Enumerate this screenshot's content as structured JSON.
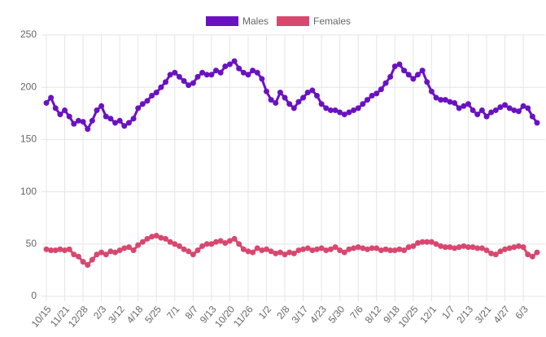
{
  "chart_data": {
    "type": "line",
    "categories": [
      "10/15",
      null,
      null,
      null,
      "11/21",
      null,
      null,
      null,
      "12/28",
      null,
      null,
      null,
      "2/3",
      null,
      null,
      null,
      "3/12",
      null,
      null,
      null,
      "4/18",
      null,
      null,
      null,
      "5/25",
      null,
      null,
      null,
      "7/1",
      null,
      null,
      null,
      "8/7",
      null,
      null,
      null,
      "9/13",
      null,
      null,
      null,
      "10/20",
      null,
      null,
      null,
      "11/26",
      null,
      null,
      null,
      "1/2",
      null,
      null,
      null,
      "2/8",
      null,
      null,
      null,
      "3/17",
      null,
      null,
      null,
      "4/23",
      null,
      null,
      null,
      "5/30",
      null,
      null,
      null,
      "7/6",
      null,
      null,
      null,
      "8/12",
      null,
      null,
      null,
      "9/18",
      null,
      null,
      null,
      "10/25",
      null,
      null,
      null,
      "12/1",
      null,
      null,
      null,
      "1/7",
      null,
      null,
      null,
      "2/13",
      null,
      null,
      null,
      "3/21",
      null,
      null,
      null,
      "4/27",
      null,
      null,
      null,
      "6/3",
      null,
      null,
      null
    ],
    "series": [
      {
        "name": "Males",
        "color": "#6a12c2",
        "values": [
          185,
          190,
          180,
          174,
          178,
          172,
          165,
          168,
          167,
          160,
          168,
          178,
          182,
          172,
          170,
          166,
          168,
          163,
          166,
          170,
          180,
          184,
          187,
          192,
          195,
          200,
          205,
          212,
          214,
          210,
          206,
          202,
          204,
          210,
          214,
          212,
          212,
          216,
          214,
          220,
          222,
          225,
          218,
          214,
          212,
          216,
          214,
          208,
          196,
          188,
          185,
          195,
          190,
          184,
          180,
          186,
          190,
          195,
          197,
          192,
          184,
          180,
          178,
          178,
          176,
          174,
          176,
          178,
          180,
          184,
          188,
          192,
          194,
          198,
          204,
          210,
          220,
          222,
          216,
          212,
          208,
          212,
          216,
          205,
          196,
          190,
          188,
          188,
          186,
          185,
          180,
          182,
          184,
          178,
          174,
          178,
          172,
          176,
          178,
          181,
          183,
          180,
          178,
          177,
          182,
          180,
          172,
          166
        ]
      },
      {
        "name": "Females",
        "color": "#d8476f",
        "values": [
          45,
          44,
          44,
          45,
          44,
          45,
          40,
          38,
          33,
          30,
          35,
          40,
          42,
          40,
          43,
          42,
          44,
          46,
          47,
          44,
          49,
          52,
          55,
          57,
          58,
          56,
          55,
          52,
          50,
          48,
          45,
          43,
          40,
          44,
          48,
          50,
          50,
          52,
          53,
          51,
          53,
          55,
          50,
          45,
          43,
          42,
          46,
          44,
          45,
          43,
          41,
          42,
          40,
          42,
          41,
          44,
          45,
          46,
          44,
          45,
          46,
          44,
          45,
          47,
          44,
          42,
          45,
          46,
          47,
          46,
          45,
          46,
          46,
          44,
          45,
          44,
          44,
          45,
          44,
          47,
          48,
          51,
          52,
          52,
          52,
          50,
          48,
          47,
          47,
          46,
          47,
          48,
          47,
          47,
          46,
          46,
          44,
          41,
          40,
          43,
          45,
          46,
          47,
          48,
          47,
          40,
          38,
          42
        ]
      }
    ],
    "ylim": [
      0,
      250
    ],
    "yticks": [
      0,
      50,
      100,
      150,
      200,
      250
    ],
    "grid": true,
    "legend": "top"
  }
}
